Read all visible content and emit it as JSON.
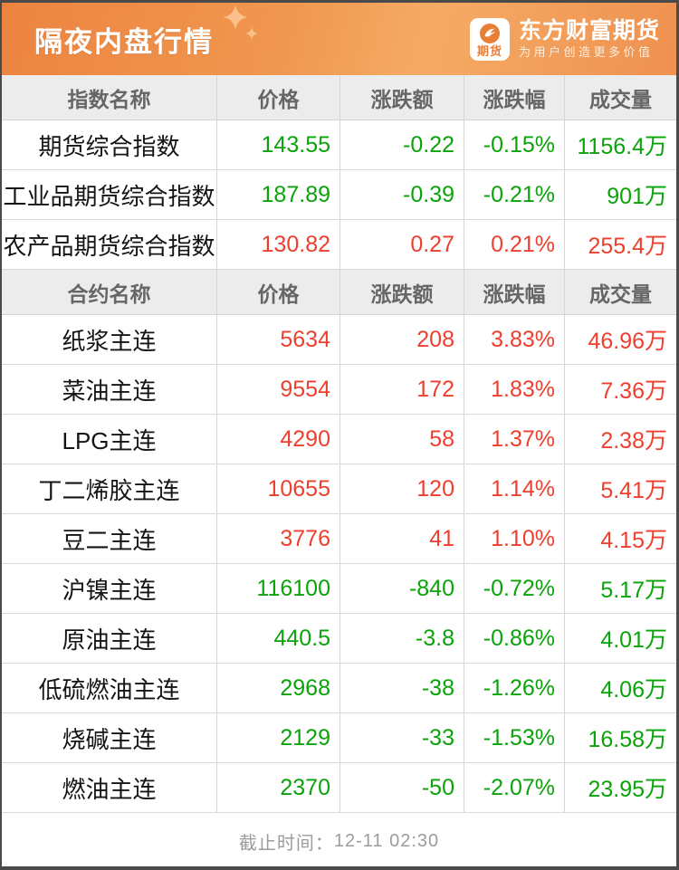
{
  "banner": {
    "title": "隔夜内盘行情",
    "brand": {
      "badge_text": "期货",
      "name": "东方财富期货",
      "tagline": "为用户创造更多价值"
    }
  },
  "table": {
    "sections": [
      {
        "headers": [
          "指数名称",
          "价格",
          "涨跌额",
          "涨跌幅",
          "成交量"
        ],
        "rows": [
          {
            "name": "期货综合指数",
            "price": "143.55",
            "change": "-0.22",
            "pct": "-0.15%",
            "volume": "1156.4万",
            "trend": "down"
          },
          {
            "name": "工业品期货综合指数",
            "price": "187.89",
            "change": "-0.39",
            "pct": "-0.21%",
            "volume": "901万",
            "trend": "down"
          },
          {
            "name": "农产品期货综合指数",
            "price": "130.82",
            "change": "0.27",
            "pct": "0.21%",
            "volume": "255.4万",
            "trend": "up"
          }
        ]
      },
      {
        "headers": [
          "合约名称",
          "价格",
          "涨跌额",
          "涨跌幅",
          "成交量"
        ],
        "rows": [
          {
            "name": "纸浆主连",
            "price": "5634",
            "change": "208",
            "pct": "3.83%",
            "volume": "46.96万",
            "trend": "up"
          },
          {
            "name": "菜油主连",
            "price": "9554",
            "change": "172",
            "pct": "1.83%",
            "volume": "7.36万",
            "trend": "up"
          },
          {
            "name": "LPG主连",
            "price": "4290",
            "change": "58",
            "pct": "1.37%",
            "volume": "2.38万",
            "trend": "up"
          },
          {
            "name": "丁二烯胶主连",
            "price": "10655",
            "change": "120",
            "pct": "1.14%",
            "volume": "5.41万",
            "trend": "up"
          },
          {
            "name": "豆二主连",
            "price": "3776",
            "change": "41",
            "pct": "1.10%",
            "volume": "4.15万",
            "trend": "up"
          },
          {
            "name": "沪镍主连",
            "price": "116100",
            "change": "-840",
            "pct": "-0.72%",
            "volume": "5.17万",
            "trend": "down"
          },
          {
            "name": "原油主连",
            "price": "440.5",
            "change": "-3.8",
            "pct": "-0.86%",
            "volume": "4.01万",
            "trend": "down"
          },
          {
            "name": "低硫燃油主连",
            "price": "2968",
            "change": "-38",
            "pct": "-1.26%",
            "volume": "4.06万",
            "trend": "down"
          },
          {
            "name": "烧碱主连",
            "price": "2129",
            "change": "-33",
            "pct": "-1.53%",
            "volume": "16.58万",
            "trend": "down"
          },
          {
            "name": "燃油主连",
            "price": "2370",
            "change": "-50",
            "pct": "-2.07%",
            "volume": "23.95万",
            "trend": "down"
          }
        ]
      }
    ]
  },
  "footer": {
    "label": "截止时间：",
    "value": "12-11 02:30"
  },
  "colors": {
    "up": "#ee3f2e",
    "down": "#0aa30a",
    "accent_dark": "#ec8440",
    "accent_mid": "#f0975０",
    "accent_mid_fixed": "#f09750",
    "accent_light": "#f5ab64",
    "accent_mid2": "#ef9150"
  }
}
